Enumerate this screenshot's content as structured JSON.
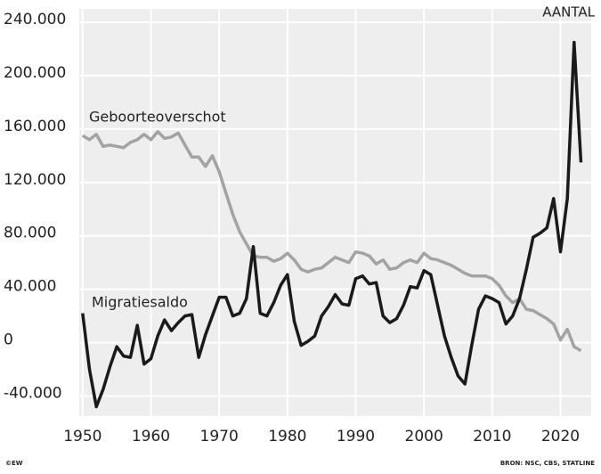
{
  "chart_data": {
    "type": "line",
    "unit_label": "AANTAL",
    "credit": "©EW",
    "source": "BRON: NSC, CBS, STATLINE",
    "x": [
      1950,
      1951,
      1952,
      1953,
      1954,
      1955,
      1956,
      1957,
      1958,
      1959,
      1960,
      1961,
      1962,
      1963,
      1964,
      1965,
      1966,
      1967,
      1968,
      1969,
      1970,
      1971,
      1972,
      1973,
      1974,
      1975,
      1976,
      1977,
      1978,
      1979,
      1980,
      1981,
      1982,
      1983,
      1984,
      1985,
      1986,
      1987,
      1988,
      1989,
      1990,
      1991,
      1992,
      1993,
      1994,
      1995,
      1996,
      1997,
      1998,
      1999,
      2000,
      2001,
      2002,
      2003,
      2004,
      2005,
      2006,
      2007,
      2008,
      2009,
      2010,
      2011,
      2012,
      2013,
      2014,
      2015,
      2016,
      2017,
      2018,
      2019,
      2020,
      2021,
      2022,
      2023
    ],
    "series": [
      {
        "name": "Geboorteoverschot",
        "color": "#a3a3a3",
        "values": [
          155000,
          152000,
          156000,
          147000,
          148000,
          147000,
          146000,
          150000,
          152000,
          156000,
          152000,
          158000,
          153000,
          154000,
          157000,
          148000,
          139000,
          139000,
          132000,
          140000,
          128000,
          112000,
          96000,
          83000,
          74000,
          65000,
          64000,
          64000,
          61000,
          63000,
          67000,
          62000,
          55000,
          53000,
          55000,
          56000,
          60000,
          64000,
          62000,
          60000,
          68000,
          67000,
          65000,
          59000,
          62000,
          55000,
          56000,
          60000,
          62000,
          60000,
          67000,
          63000,
          62000,
          60000,
          58000,
          55000,
          52000,
          50000,
          50000,
          50000,
          48000,
          43000,
          35000,
          30000,
          33000,
          25000,
          24000,
          21000,
          18000,
          14000,
          2000,
          10000,
          -3000,
          -6000
        ]
      },
      {
        "name": "Migratiesaldo",
        "color": "#1a1a1a",
        "values": [
          22000,
          -20000,
          -48000,
          -35000,
          -18000,
          -3000,
          -10000,
          -11000,
          13000,
          -16000,
          -12000,
          5000,
          17000,
          9000,
          15000,
          20000,
          21000,
          -11000,
          6000,
          20000,
          34000,
          34000,
          20000,
          22000,
          33000,
          72000,
          22000,
          20000,
          30000,
          43000,
          51000,
          16000,
          -2000,
          1000,
          5000,
          20000,
          27000,
          36000,
          29000,
          28000,
          48000,
          50000,
          44000,
          45000,
          20000,
          15000,
          18000,
          28000,
          42000,
          41000,
          54000,
          51000,
          28000,
          5000,
          -11000,
          -25000,
          -31000,
          -2000,
          25000,
          35000,
          33000,
          30000,
          14000,
          20000,
          33000,
          55000,
          79000,
          82000,
          86000,
          108000,
          68000,
          108000,
          225000,
          135000
        ]
      }
    ],
    "xlim": [
      1949.5,
      2024.5
    ],
    "xticks": [
      1950,
      1960,
      1970,
      1980,
      1990,
      2000,
      2010,
      2020
    ],
    "ylim": [
      -55000,
      250000
    ],
    "yticks": [
      {
        "value": 240000,
        "label": "240.000"
      },
      {
        "value": 200000,
        "label": "200.000"
      },
      {
        "value": 160000,
        "label": "160.000"
      },
      {
        "value": 120000,
        "label": "120.000"
      },
      {
        "value": 80000,
        "label": "80.000"
      },
      {
        "value": 40000,
        "label": "40.000"
      },
      0,
      {
        "value": -40000,
        "label": "-40.000"
      }
    ],
    "grid": true
  }
}
